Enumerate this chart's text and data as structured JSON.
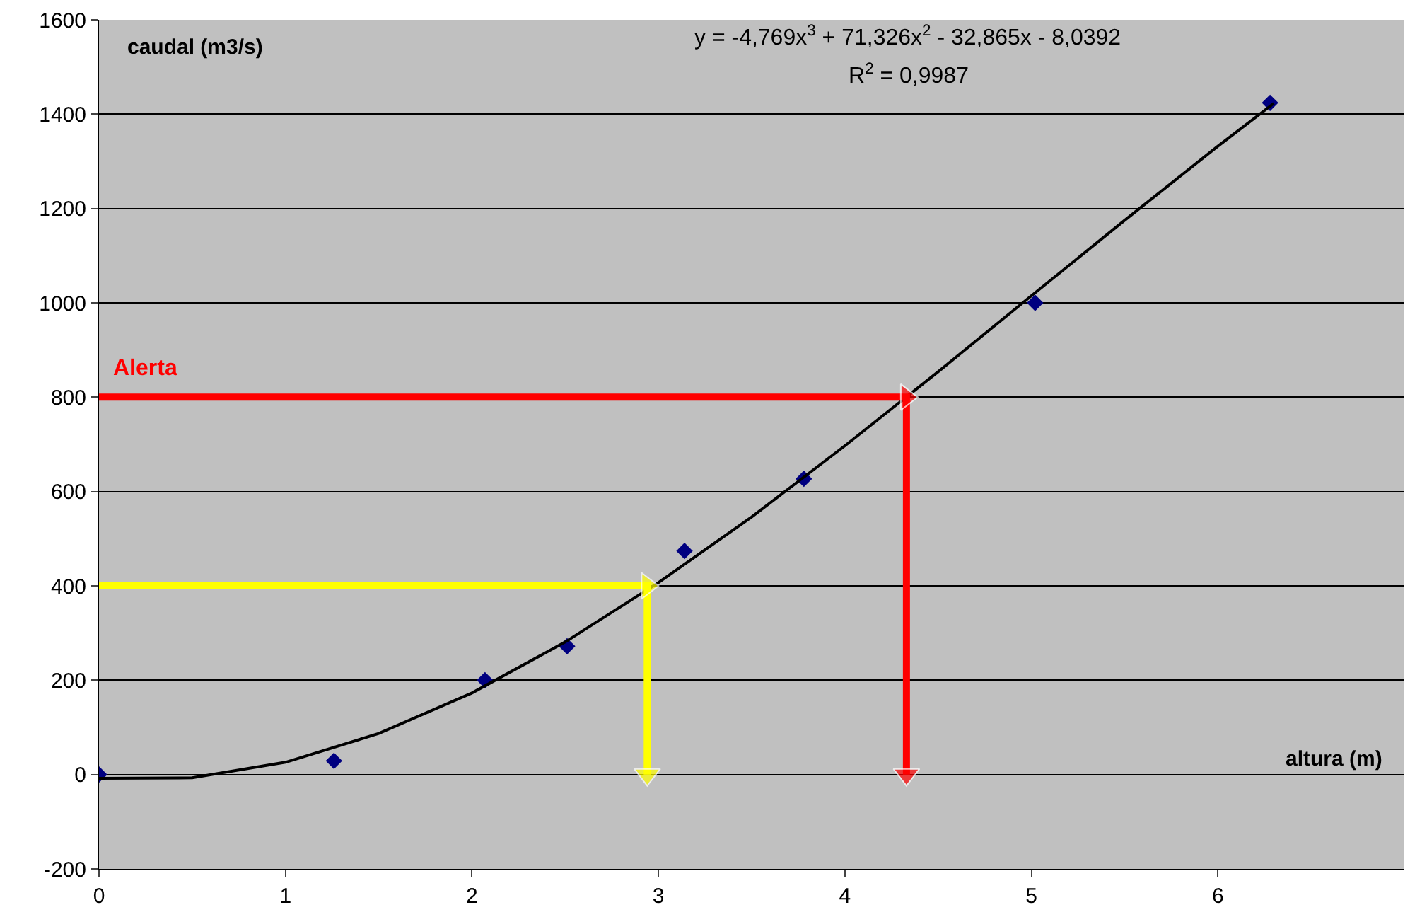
{
  "chart_data": {
    "type": "scatter",
    "xlabel": "altura (m)",
    "ylabel": "caudal (m3/s)",
    "annotations": [
      "y = -4,769x$^{3}$ + 71,326x$^{2}$ - 32,865x - 8,0392",
      "R$^{2}$ = 0,9987"
    ],
    "xlim": [
      0,
      7
    ],
    "xticks": [
      0,
      1,
      2,
      3,
      4,
      5,
      6
    ],
    "ylim": [
      -200,
      1600
    ],
    "yticks": [
      -200,
      0,
      200,
      400,
      600,
      800,
      1000,
      1200,
      1400,
      1600
    ],
    "grid": "y",
    "series": [
      {
        "marker": "diamond",
        "color": "#000080",
        "x": [
          0,
          1.26,
          2.07,
          2.51,
          3.14,
          3.78,
          5.02,
          6.28
        ],
        "values": [
          0,
          29,
          200,
          272,
          474,
          627,
          1000,
          1424
        ]
      },
      {
        "type": "line",
        "marker": "none",
        "color": "#000000",
        "x": [
          0,
          0.5,
          1,
          1.5,
          2,
          2.5,
          3,
          3.5,
          4,
          4.5,
          5,
          5.5,
          6,
          6.3
        ],
        "values": [
          -8,
          -7,
          26,
          87,
          173,
          281,
          407,
          546,
          697,
          854,
          1015,
          1175,
          1332,
          1423
        ]
      },
      {
        "type": "line",
        "marker": "triangle",
        "color": "#ffff00",
        "x": [
          0,
          2.94,
          2.94
        ],
        "values": [
          400,
          400,
          0
        ]
      },
      {
        "type": "line",
        "marker": "triangle",
        "name": "Alerta",
        "color": "#ff0000",
        "x": [
          0,
          4.33,
          4.33
        ],
        "values": [
          800,
          800,
          0
        ]
      }
    ]
  }
}
